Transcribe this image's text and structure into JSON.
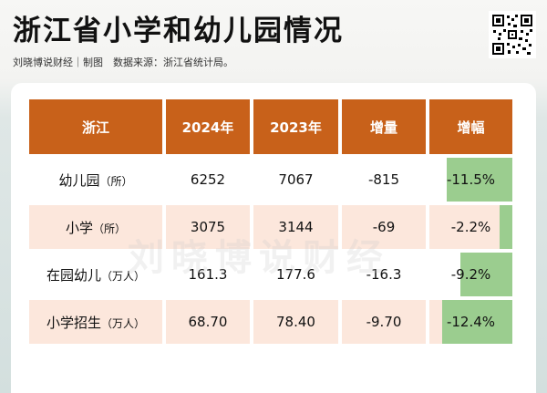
{
  "title": "浙江省小学和幼儿园情况",
  "subtitle": "刘晓博说财经｜制图　数据来源：浙江省统计局。",
  "watermark": "刘晓博说财经",
  "table": {
    "headers": [
      "浙江",
      "2024年",
      "2023年",
      "增量",
      "增幅"
    ],
    "rows": [
      {
        "name": "幼儿园",
        "unit": "（所）",
        "y2024": "6252",
        "y2023": "7067",
        "delta": "-815",
        "pct": "-11.5%",
        "pct_value": -11.5
      },
      {
        "name": "小学",
        "unit": "（所）",
        "y2024": "3075",
        "y2023": "3144",
        "delta": "-69",
        "pct": "-2.2%",
        "pct_value": -2.2
      },
      {
        "name": "在园幼儿",
        "unit": "（万人）",
        "y2024": "161.3",
        "y2023": "177.6",
        "delta": "-16.3",
        "pct": "-9.2%",
        "pct_value": -9.2
      },
      {
        "name": "小学招生",
        "unit": "（万人）",
        "y2024": "68.70",
        "y2023": "78.40",
        "delta": "-9.70",
        "pct": "-12.4%",
        "pct_value": -12.4
      }
    ]
  },
  "colors": {
    "header_bg": "#c8611a",
    "alt_row_bg": "#fce7dc",
    "bar": "#9bcd8f"
  },
  "icons": [
    "qr-code-icon"
  ]
}
